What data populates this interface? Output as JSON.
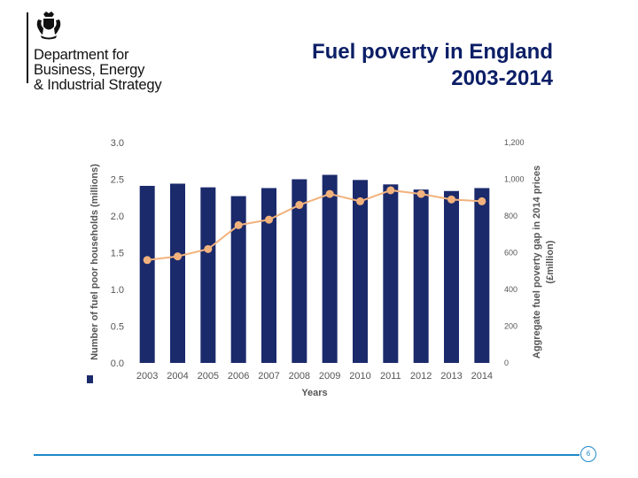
{
  "header": {
    "org_line1": "Department for",
    "org_line2": "Business, Energy",
    "org_line3": "& Industrial Strategy",
    "title_line1": "Fuel poverty in England",
    "title_line2": "2003-2014"
  },
  "icons": {
    "crest": "royal-coat-of-arms-icon"
  },
  "colors": {
    "bar": "#1b2a6b",
    "line": "#f2b27d",
    "accent": "#1f88c9",
    "title": "#0b1e66"
  },
  "chart_data": {
    "type": "bar+line",
    "categories": [
      "2003",
      "2004",
      "2005",
      "2006",
      "2007",
      "2008",
      "2009",
      "2010",
      "2011",
      "2012",
      "2013",
      "2014"
    ],
    "series": [
      {
        "name": "Number of fuel poor households (millions)",
        "type": "bar",
        "axis": "left",
        "values": [
          2.41,
          2.44,
          2.39,
          2.27,
          2.38,
          2.5,
          2.56,
          2.49,
          2.43,
          2.36,
          2.34,
          2.38
        ]
      },
      {
        "name": "Aggregate fuel poverty gap in 2014 prices (£million)",
        "type": "line",
        "axis": "right",
        "values": [
          560,
          580,
          620,
          750,
          780,
          860,
          920,
          880,
          940,
          920,
          890,
          880
        ]
      }
    ],
    "xlabel": "Years",
    "ylabel_left": "Number of fuel poor households (millions)",
    "ylabel_right_line1": "Aggregate fuel poverty gap in 2014 prices",
    "ylabel_right_line2": "(£million)",
    "ylim_left": [
      0,
      3.0
    ],
    "ylim_right": [
      0,
      1200
    ],
    "left_ticks": [
      "0.0",
      "0.5",
      "1.0",
      "1.5",
      "2.0",
      "2.5",
      "3.0"
    ],
    "right_ticks": [
      "0",
      "200",
      "400",
      "600",
      "800",
      "1,000",
      "1,200"
    ],
    "grid": false
  },
  "footer": {
    "page_number": "6"
  }
}
